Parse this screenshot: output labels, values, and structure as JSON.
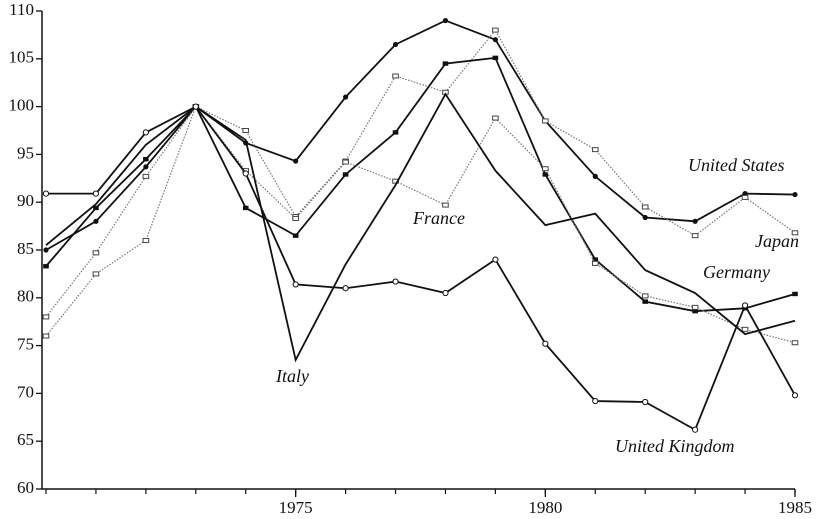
{
  "chart_data": {
    "type": "line",
    "x": [
      1970,
      1971,
      1972,
      1973,
      1974,
      1975,
      1976,
      1977,
      1978,
      1979,
      1980,
      1981,
      1982,
      1983,
      1984,
      1985
    ],
    "xlim": [
      1970,
      1985
    ],
    "xticks": [
      1975,
      1980,
      1985
    ],
    "ylim": [
      60,
      110
    ],
    "yticks": [
      60,
      65,
      70,
      75,
      80,
      85,
      90,
      95,
      100,
      105,
      110
    ],
    "series": [
      {
        "name": "United States",
        "color": "#111111",
        "marker": "filled-circle",
        "dash": "solid",
        "values": [
          85,
          88,
          93.7,
          100,
          96.2,
          94.3,
          101,
          106.5,
          109,
          107,
          98.5,
          92.7,
          88.4,
          88,
          90.9,
          90.8
        ]
      },
      {
        "name": "Japan",
        "color": "#777777",
        "marker": "open-square",
        "dash": "dotted",
        "values": [
          76,
          82.5,
          86,
          100,
          97.5,
          88.5,
          94.3,
          103.2,
          101.5,
          108,
          98.5,
          95.5,
          89.5,
          86.5,
          90.5,
          86.8
        ]
      },
      {
        "name": "Germany",
        "color": "#111111",
        "marker": "filled-square",
        "dash": "solid",
        "values": [
          83.3,
          89.4,
          94.5,
          100,
          89.4,
          86.5,
          92.9,
          97.3,
          104.5,
          105.1,
          92.9,
          84,
          79.6,
          78.6,
          78.9,
          80.4
        ]
      },
      {
        "name": "France",
        "color": "#777777",
        "marker": "open-square",
        "dash": "dotted",
        "values": [
          78,
          84.7,
          92.7,
          100,
          93.3,
          88.3,
          94.2,
          92.2,
          89.7,
          98.8,
          93.5,
          83.6,
          80.2,
          79,
          76.7,
          75.3
        ]
      },
      {
        "name": "Italy",
        "color": "#111111",
        "marker": "none",
        "dash": "solid",
        "values": [
          85.5,
          89.8,
          96,
          100,
          96.5,
          73.5,
          83.5,
          91.8,
          101.3,
          93.3,
          87.6,
          88.8,
          82.9,
          80.5,
          76.2,
          77.6
        ]
      },
      {
        "name": "United Kingdom",
        "color": "#111111",
        "marker": "open-circle",
        "dash": "solid",
        "values": [
          90.9,
          90.9,
          97.3,
          100,
          93,
          81.4,
          81,
          81.7,
          80.5,
          84,
          75.2,
          69.2,
          69.1,
          66.2,
          79.2,
          69.8
        ]
      }
    ]
  }
}
